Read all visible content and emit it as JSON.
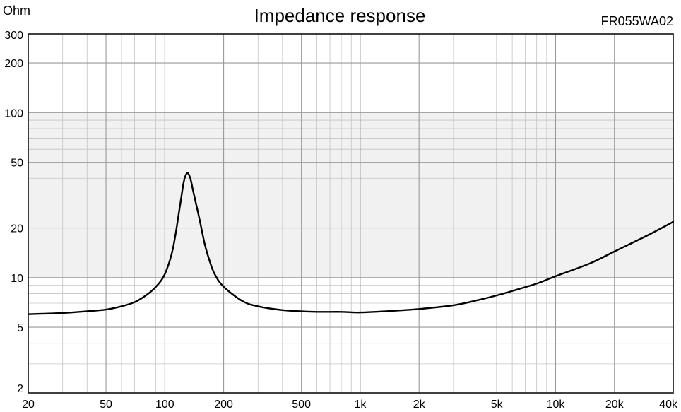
{
  "chart_data": {
    "type": "line",
    "title": "Impedance response",
    "model": "FR055WA02",
    "ylabel": "Ohm",
    "xscale": "log",
    "yscale": "log",
    "xlim": [
      20,
      40000
    ],
    "ylim": [
      2,
      300
    ],
    "grid": true,
    "xticks": [
      {
        "v": 20,
        "label": "20"
      },
      {
        "v": 50,
        "label": "50"
      },
      {
        "v": 100,
        "label": "100"
      },
      {
        "v": 200,
        "label": "200"
      },
      {
        "v": 500,
        "label": "500"
      },
      {
        "v": 1000,
        "label": "1k"
      },
      {
        "v": 2000,
        "label": "2k"
      },
      {
        "v": 5000,
        "label": "5k"
      },
      {
        "v": 10000,
        "label": "10k"
      },
      {
        "v": 20000,
        "label": "20k"
      },
      {
        "v": 40000,
        "label": "40k"
      }
    ],
    "yticks": [
      {
        "v": 300,
        "label": "300"
      },
      {
        "v": 200,
        "label": "200"
      },
      {
        "v": 100,
        "label": "100"
      },
      {
        "v": 50,
        "label": "50"
      },
      {
        "v": 20,
        "label": "20"
      },
      {
        "v": 10,
        "label": "10"
      },
      {
        "v": 5,
        "label": "5"
      },
      {
        "v": 2,
        "label": "2"
      }
    ],
    "series": [
      {
        "points": [
          [
            20,
            6.0
          ],
          [
            30,
            6.1
          ],
          [
            40,
            6.25
          ],
          [
            50,
            6.4
          ],
          [
            60,
            6.7
          ],
          [
            70,
            7.1
          ],
          [
            80,
            7.8
          ],
          [
            90,
            8.8
          ],
          [
            100,
            10.5
          ],
          [
            110,
            15
          ],
          [
            120,
            28
          ],
          [
            125,
            38
          ],
          [
            130,
            43
          ],
          [
            135,
            40
          ],
          [
            140,
            33
          ],
          [
            150,
            23
          ],
          [
            160,
            16
          ],
          [
            170,
            12.5
          ],
          [
            180,
            10.5
          ],
          [
            200,
            8.8
          ],
          [
            250,
            7.2
          ],
          [
            300,
            6.7
          ],
          [
            400,
            6.35
          ],
          [
            500,
            6.25
          ],
          [
            600,
            6.2
          ],
          [
            800,
            6.2
          ],
          [
            1000,
            6.15
          ],
          [
            1500,
            6.3
          ],
          [
            2000,
            6.45
          ],
          [
            3000,
            6.8
          ],
          [
            4000,
            7.3
          ],
          [
            5000,
            7.8
          ],
          [
            6000,
            8.3
          ],
          [
            8000,
            9.2
          ],
          [
            10000,
            10.2
          ],
          [
            15000,
            12.2
          ],
          [
            20000,
            14.4
          ],
          [
            30000,
            18.2
          ],
          [
            40000,
            21.8
          ]
        ]
      }
    ]
  }
}
